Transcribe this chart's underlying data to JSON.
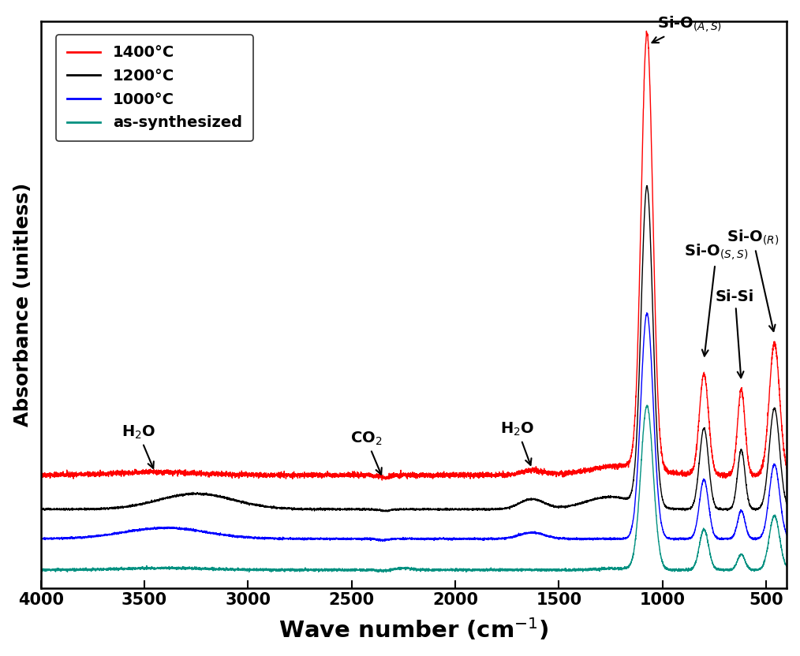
{
  "xlabel": "Wave number (cm$^{-1}$)",
  "ylabel": "Absorbance (unitless)",
  "xlim": [
    4000,
    400
  ],
  "legend_labels": [
    "1400°C",
    "1200°C",
    "1000°C",
    "as-synthesized"
  ],
  "legend_colors": [
    "red",
    "black",
    "blue",
    "#008080"
  ],
  "x_ticks": [
    4000,
    3500,
    3000,
    2500,
    2000,
    1500,
    1000,
    500
  ],
  "background_color": "white",
  "line_width": 1.0,
  "noise_amplitude_red": 0.008,
  "noise_amplitude_others": 0.003
}
